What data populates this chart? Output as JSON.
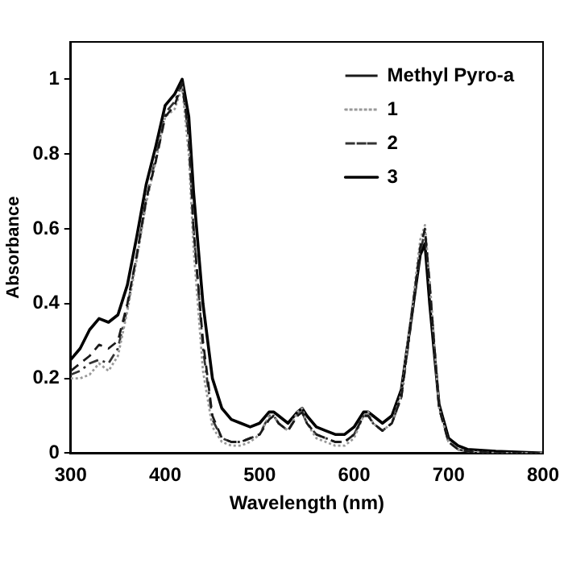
{
  "chart_data": {
    "type": "line",
    "xlabel": "Wavelength (nm)",
    "ylabel": "Absorbance",
    "xlim": [
      300,
      800
    ],
    "xticks": [
      300,
      400,
      500,
      600,
      700,
      800
    ],
    "ylim": [
      0,
      1.1
    ],
    "yticks": [
      0,
      0.2,
      0.4,
      0.6,
      0.8,
      1
    ],
    "grid": false,
    "legend": "top right",
    "marker": "none",
    "x": [
      300,
      310,
      320,
      330,
      340,
      350,
      360,
      370,
      380,
      390,
      400,
      410,
      418,
      425,
      430,
      440,
      450,
      460,
      470,
      480,
      490,
      500,
      510,
      515,
      520,
      530,
      540,
      545,
      550,
      560,
      570,
      580,
      590,
      600,
      610,
      615,
      620,
      630,
      640,
      650,
      660,
      670,
      675,
      680,
      690,
      700,
      710,
      720,
      750,
      800
    ],
    "series": [
      {
        "name": "Methyl Pyro-a",
        "color": "#1a1a1a",
        "line_style": "dashed",
        "values": [
          0.22,
          0.24,
          0.26,
          0.29,
          0.28,
          0.3,
          0.4,
          0.53,
          0.68,
          0.78,
          0.9,
          0.93,
          0.99,
          0.85,
          0.6,
          0.3,
          0.1,
          0.04,
          0.03,
          0.03,
          0.04,
          0.05,
          0.09,
          0.1,
          0.08,
          0.06,
          0.1,
          0.11,
          0.08,
          0.05,
          0.04,
          0.03,
          0.03,
          0.05,
          0.1,
          0.1,
          0.08,
          0.06,
          0.08,
          0.15,
          0.35,
          0.55,
          0.6,
          0.45,
          0.12,
          0.03,
          0.01,
          0.005,
          0,
          0
        ]
      },
      {
        "name": "1",
        "color": "#999999",
        "line_style": "dotted",
        "values": [
          0.2,
          0.2,
          0.21,
          0.24,
          0.22,
          0.26,
          0.38,
          0.52,
          0.67,
          0.78,
          0.9,
          0.92,
          0.98,
          0.8,
          0.55,
          0.22,
          0.07,
          0.03,
          0.02,
          0.02,
          0.03,
          0.05,
          0.1,
          0.1,
          0.08,
          0.06,
          0.11,
          0.12,
          0.08,
          0.04,
          0.03,
          0.02,
          0.02,
          0.04,
          0.1,
          0.11,
          0.08,
          0.06,
          0.08,
          0.16,
          0.36,
          0.57,
          0.61,
          0.46,
          0.12,
          0.03,
          0.01,
          0.005,
          0,
          0
        ]
      },
      {
        "name": "2",
        "color": "#333333",
        "line_style": "dashdot",
        "values": [
          0.21,
          0.22,
          0.24,
          0.25,
          0.24,
          0.28,
          0.39,
          0.53,
          0.68,
          0.79,
          0.91,
          0.94,
          0.99,
          0.84,
          0.6,
          0.28,
          0.09,
          0.04,
          0.03,
          0.03,
          0.04,
          0.05,
          0.1,
          0.1,
          0.08,
          0.06,
          0.1,
          0.11,
          0.08,
          0.05,
          0.04,
          0.03,
          0.03,
          0.05,
          0.1,
          0.1,
          0.08,
          0.06,
          0.08,
          0.15,
          0.34,
          0.54,
          0.59,
          0.45,
          0.12,
          0.03,
          0.01,
          0.005,
          0,
          0
        ]
      },
      {
        "name": "3",
        "color": "#000000",
        "line_style": "solid",
        "values": [
          0.25,
          0.28,
          0.33,
          0.36,
          0.35,
          0.37,
          0.45,
          0.58,
          0.72,
          0.82,
          0.93,
          0.96,
          1,
          0.9,
          0.7,
          0.4,
          0.2,
          0.12,
          0.09,
          0.08,
          0.07,
          0.08,
          0.11,
          0.11,
          0.1,
          0.08,
          0.11,
          0.12,
          0.1,
          0.07,
          0.06,
          0.05,
          0.05,
          0.07,
          0.11,
          0.11,
          0.1,
          0.08,
          0.1,
          0.17,
          0.35,
          0.53,
          0.56,
          0.4,
          0.13,
          0.04,
          0.02,
          0.01,
          0.005,
          0
        ]
      }
    ]
  }
}
